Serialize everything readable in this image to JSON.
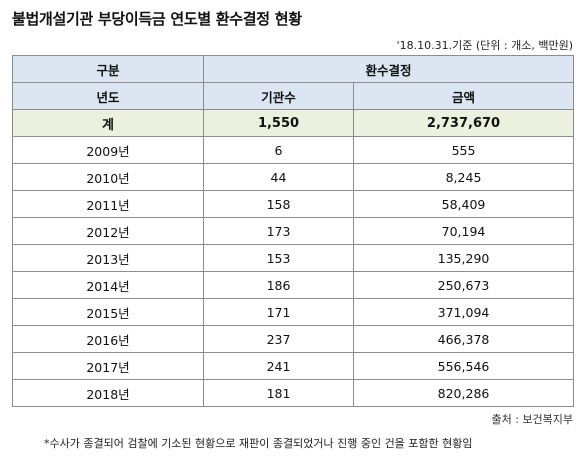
{
  "title": "불법개설기관 부당이득금 연도별 환수결정 현황",
  "unit_note": "'18.10.31.기준 (단위 : 개소, 백만원)",
  "table": {
    "header1": {
      "category": "구분",
      "group": "환수결정"
    },
    "header2": {
      "year": "년도",
      "count": "기관수",
      "amount": "금액"
    },
    "total": {
      "label": "계",
      "count": "1,550",
      "amount": "2,737,670"
    },
    "rows": [
      {
        "year": "2009년",
        "count": "6",
        "amount": "555"
      },
      {
        "year": "2010년",
        "count": "44",
        "amount": "8,245"
      },
      {
        "year": "2011년",
        "count": "158",
        "amount": "58,409"
      },
      {
        "year": "2012년",
        "count": "173",
        "amount": "70,194"
      },
      {
        "year": "2013년",
        "count": "153",
        "amount": "135,290"
      },
      {
        "year": "2014년",
        "count": "186",
        "amount": "250,673"
      },
      {
        "year": "2015년",
        "count": "171",
        "amount": "371,094"
      },
      {
        "year": "2016년",
        "count": "237",
        "amount": "466,378"
      },
      {
        "year": "2017년",
        "count": "241",
        "amount": "556,546"
      },
      {
        "year": "2018년",
        "count": "181",
        "amount": "820,286"
      }
    ]
  },
  "source": "출처 : 보건복지부",
  "footnote": "*수사가 종결되어 검찰에 기소된 현황으로 재판이 종결되었거나 진행 중인 건을 포함한 현황임"
}
